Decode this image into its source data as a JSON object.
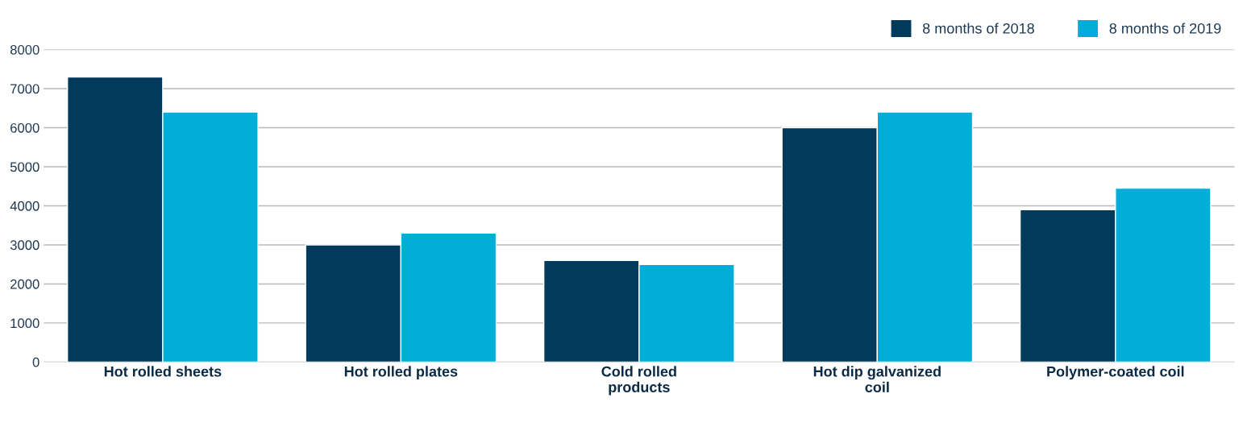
{
  "chart_data": {
    "type": "bar",
    "categories": [
      "Hot rolled sheets",
      "Hot rolled plates",
      "Cold rolled\nproducts",
      "Hot dip galvanized\ncoil",
      "Polymer-coated coil"
    ],
    "series": [
      {
        "name": "8 months of 2018",
        "color": "#023a5c",
        "values": [
          7300,
          3000,
          2600,
          6000,
          3900
        ]
      },
      {
        "name": "8 months of 2019",
        "color": "#00acd8",
        "values": [
          6400,
          3300,
          2500,
          6400,
          4450
        ]
      }
    ],
    "ylim": [
      0,
      8000
    ],
    "yticks": [
      0,
      1000,
      2000,
      3000,
      4000,
      5000,
      6000,
      7000,
      8000
    ],
    "grid": "y",
    "legend": "top right"
  }
}
